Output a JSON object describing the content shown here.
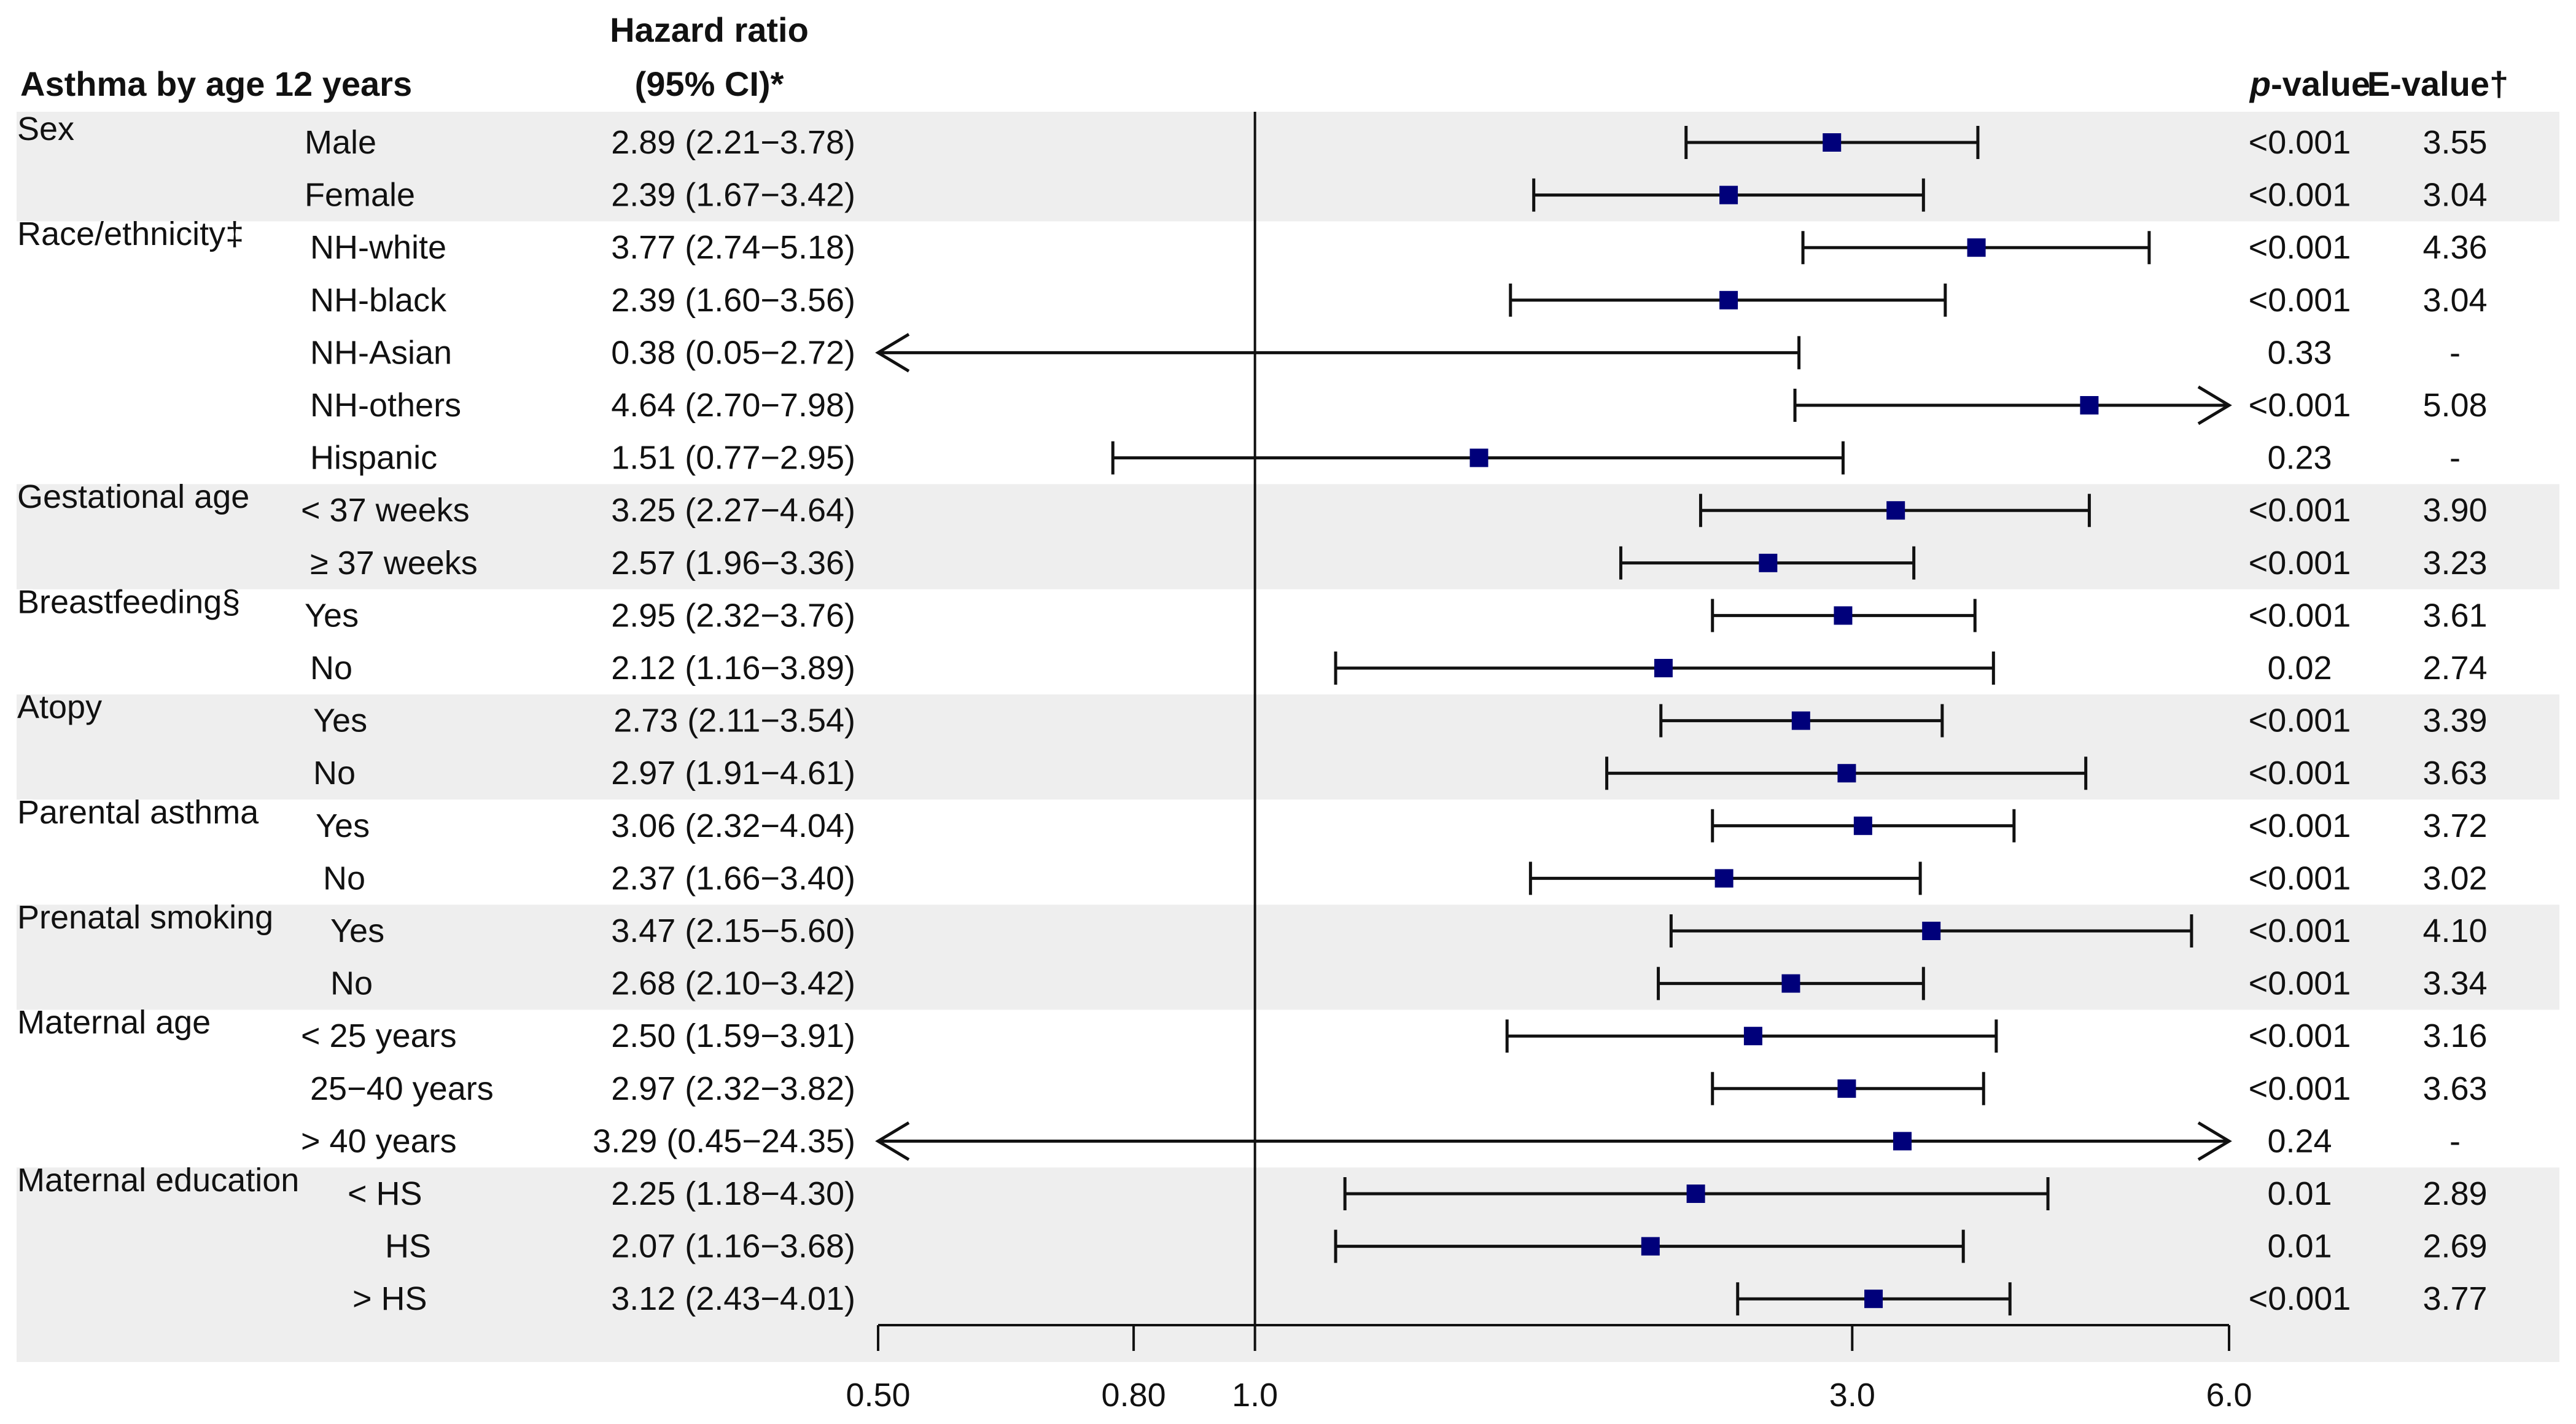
{
  "header": {
    "title": "Asthma by age 12 years",
    "hr_label_line1": "Hazard ratio",
    "hr_label_line2": "(95% CI)*",
    "pvalue_label_italic": "p",
    "pvalue_label_rest": "-value",
    "evalue_label": "E-value†"
  },
  "colors": {
    "band": "#eeeeee",
    "marker": "#00007a",
    "line": "#111111"
  },
  "chart_data": {
    "type": "forest",
    "title": "Asthma by age 12 years",
    "xscale": "log",
    "xlim": [
      0.5,
      6.0
    ],
    "reference_line": 1.0,
    "x_ticks": [
      {
        "value": 0.5,
        "label": "0.50"
      },
      {
        "value": 0.8,
        "label": "0.80"
      },
      {
        "value": 1.0,
        "label": "1.0"
      },
      {
        "value": 3.0,
        "label": "3.0"
      },
      {
        "value": 6.0,
        "label": "6.0"
      }
    ],
    "groups": [
      {
        "name": "Sex",
        "shaded": true
      },
      {
        "name": "Race/ethnicity‡",
        "shaded": false
      },
      {
        "name": "Gestational age",
        "shaded": true
      },
      {
        "name": "Breastfeeding§",
        "shaded": false
      },
      {
        "name": "Atopy",
        "shaded": true
      },
      {
        "name": "Parental asthma",
        "shaded": false
      },
      {
        "name": "Prenatal smoking",
        "shaded": true
      },
      {
        "name": "Maternal age",
        "shaded": false
      },
      {
        "name": "Maternal education",
        "shaded": true
      }
    ],
    "rows": [
      {
        "group": 0,
        "sub": "Male",
        "hr": 2.89,
        "lo": 2.21,
        "hi": 3.78,
        "text": "2.89 (2.21−3.78)",
        "p": "<0.001",
        "e": "3.55"
      },
      {
        "group": 0,
        "sub": "Female",
        "hr": 2.39,
        "lo": 1.67,
        "hi": 3.42,
        "text": "2.39 (1.67−3.42)",
        "p": "<0.001",
        "e": "3.04"
      },
      {
        "group": 1,
        "sub": "NH-white",
        "hr": 3.77,
        "lo": 2.74,
        "hi": 5.18,
        "text": "3.77 (2.74−5.18)",
        "p": "<0.001",
        "e": "4.36"
      },
      {
        "group": 1,
        "sub": "NH-black",
        "hr": 2.39,
        "lo": 1.6,
        "hi": 3.56,
        "text": "2.39 (1.60−3.56)",
        "p": "<0.001",
        "e": "3.04"
      },
      {
        "group": 1,
        "sub": "NH-Asian",
        "hr": 0.38,
        "lo": 0.05,
        "hi": 2.72,
        "text": "0.38 (0.05−2.72)",
        "p": "0.33",
        "e": "-"
      },
      {
        "group": 1,
        "sub": "NH-others",
        "hr": 4.64,
        "lo": 2.7,
        "hi": 7.98,
        "text": "4.64 (2.70−7.98)",
        "p": "<0.001",
        "e": "5.08"
      },
      {
        "group": 1,
        "sub": "Hispanic",
        "hr": 1.51,
        "lo": 0.77,
        "hi": 2.95,
        "text": "1.51 (0.77−2.95)",
        "p": "0.23",
        "e": "-"
      },
      {
        "group": 2,
        "sub": "< 37 weeks",
        "hr": 3.25,
        "lo": 2.27,
        "hi": 4.64,
        "text": "3.25 (2.27−4.64)",
        "p": "<0.001",
        "e": "3.90"
      },
      {
        "group": 2,
        "sub": "≥ 37 weeks",
        "hr": 2.57,
        "lo": 1.96,
        "hi": 3.36,
        "text": "2.57 (1.96−3.36)",
        "p": "<0.001",
        "e": "3.23"
      },
      {
        "group": 3,
        "sub": "Yes",
        "hr": 2.95,
        "lo": 2.32,
        "hi": 3.76,
        "text": "2.95 (2.32−3.76)",
        "p": "<0.001",
        "e": "3.61"
      },
      {
        "group": 3,
        "sub": "No",
        "hr": 2.12,
        "lo": 1.16,
        "hi": 3.89,
        "text": "2.12 (1.16−3.89)",
        "p": "0.02",
        "e": "2.74"
      },
      {
        "group": 4,
        "sub": "Yes",
        "hr": 2.73,
        "lo": 2.11,
        "hi": 3.54,
        "text": "2.73 (2.11−3.54)",
        "p": "<0.001",
        "e": "3.39"
      },
      {
        "group": 4,
        "sub": "No",
        "hr": 2.97,
        "lo": 1.91,
        "hi": 4.61,
        "text": "2.97 (1.91−4.61)",
        "p": "<0.001",
        "e": "3.63"
      },
      {
        "group": 5,
        "sub": "Yes",
        "hr": 3.06,
        "lo": 2.32,
        "hi": 4.04,
        "text": "3.06 (2.32−4.04)",
        "p": "<0.001",
        "e": "3.72"
      },
      {
        "group": 5,
        "sub": "No",
        "hr": 2.37,
        "lo": 1.66,
        "hi": 3.4,
        "text": "2.37 (1.66−3.40)",
        "p": "<0.001",
        "e": "3.02"
      },
      {
        "group": 6,
        "sub": "Yes",
        "hr": 3.47,
        "lo": 2.15,
        "hi": 5.6,
        "text": "3.47 (2.15−5.60)",
        "p": "<0.001",
        "e": "4.10"
      },
      {
        "group": 6,
        "sub": "No",
        "hr": 2.68,
        "lo": 2.1,
        "hi": 3.42,
        "text": "2.68 (2.10−3.42)",
        "p": "<0.001",
        "e": "3.34"
      },
      {
        "group": 7,
        "sub": "< 25 years",
        "hr": 2.5,
        "lo": 1.59,
        "hi": 3.91,
        "text": "2.50 (1.59−3.91)",
        "p": "<0.001",
        "e": "3.16"
      },
      {
        "group": 7,
        "sub": "25−40 years",
        "hr": 2.97,
        "lo": 2.32,
        "hi": 3.82,
        "text": "2.97 (2.32−3.82)",
        "p": "<0.001",
        "e": "3.63"
      },
      {
        "group": 7,
        "sub": "> 40 years",
        "hr": 3.29,
        "lo": 0.45,
        "hi": 24.35,
        "text": "3.29 (0.45−24.35)",
        "p": "0.24",
        "e": "-"
      },
      {
        "group": 8,
        "sub": "< HS",
        "hr": 2.25,
        "lo": 1.18,
        "hi": 4.3,
        "text": "2.25 (1.18−4.30)",
        "p": "0.01",
        "e": "2.89"
      },
      {
        "group": 8,
        "sub": "HS",
        "hr": 2.07,
        "lo": 1.16,
        "hi": 3.68,
        "text": "2.07 (1.16−3.68)",
        "p": "0.01",
        "e": "2.69"
      },
      {
        "group": 8,
        "sub": "> HS",
        "hr": 3.12,
        "lo": 2.43,
        "hi": 4.01,
        "text": "3.12 (2.43−4.01)",
        "p": "<0.001",
        "e": "3.77"
      }
    ]
  }
}
